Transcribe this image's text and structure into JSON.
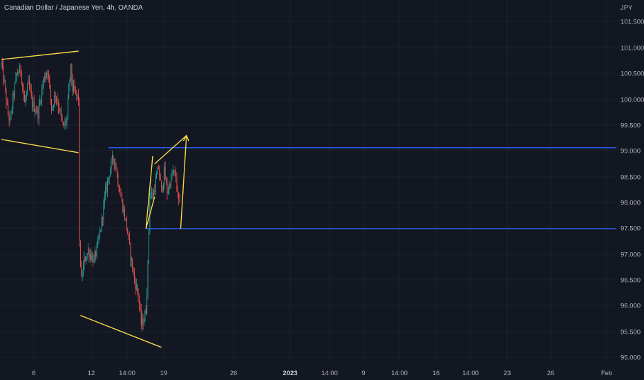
{
  "header": {
    "title": "Canadian Dollar / Japanese Yen, 4h, OANDA"
  },
  "price_axis": {
    "currency": "JPY"
  },
  "chart_data": {
    "type": "candlestick",
    "title": "Canadian Dollar / Japanese Yen, 4h, OANDA",
    "ylabel": "JPY",
    "ylim": [
      94.93,
      102.2
    ],
    "y_ticks": [
      "101.500",
      "101.000",
      "100.500",
      "100.000",
      "99.500",
      "99.000",
      "98.500",
      "98.000",
      "97.500",
      "97.000",
      "96.500",
      "96.000",
      "95.500",
      "95.000"
    ],
    "x_ticks": [
      "6",
      "12",
      "14:00",
      "19",
      "26",
      "2023",
      "14:00",
      "9",
      "14:00",
      "16",
      "14:00",
      "23",
      "26",
      "Feb"
    ],
    "x_bold_ticks": [
      "2023"
    ],
    "price_path": [
      [
        0,
        101.0
      ],
      [
        3,
        100.6
      ],
      [
        6,
        100.1
      ],
      [
        9,
        99.8
      ],
      [
        12,
        100.3
      ],
      [
        16,
        100.8
      ],
      [
        20,
        100.9
      ],
      [
        24,
        100.2
      ],
      [
        28,
        100.6
      ],
      [
        32,
        100.2
      ],
      [
        38,
        100.0
      ],
      [
        44,
        100.7
      ],
      [
        48,
        100.9
      ],
      [
        52,
        100.1
      ],
      [
        56,
        100.4
      ],
      [
        60,
        100.1
      ],
      [
        64,
        99.7
      ],
      [
        68,
        99.9
      ],
      [
        70,
        100.5
      ],
      [
        72,
        100.9
      ],
      [
        74,
        100.5
      ],
      [
        80,
        100.3
      ],
      [
        81,
        97.3
      ],
      [
        83,
        96.6
      ],
      [
        86,
        97.0
      ],
      [
        90,
        97.2
      ],
      [
        96,
        97.0
      ],
      [
        100,
        97.3
      ],
      [
        104,
        97.8
      ],
      [
        108,
        98.4
      ],
      [
        112,
        98.8
      ],
      [
        116,
        99.1
      ],
      [
        118,
        99.0
      ],
      [
        122,
        98.5
      ],
      [
        126,
        98.1
      ],
      [
        130,
        97.7
      ],
      [
        134,
        97.1
      ],
      [
        138,
        96.6
      ],
      [
        142,
        96.3
      ],
      [
        145,
        95.7
      ],
      [
        148,
        95.8
      ],
      [
        150,
        96.0
      ],
      [
        152,
        96.9
      ],
      [
        154,
        98.4
      ],
      [
        157,
        98.3
      ],
      [
        160,
        98.6
      ],
      [
        163,
        98.9
      ],
      [
        166,
        98.4
      ],
      [
        169,
        98.8
      ],
      [
        172,
        98.4
      ],
      [
        175,
        98.6
      ],
      [
        178,
        98.8
      ],
      [
        181,
        98.7
      ],
      [
        183,
        98.3
      ],
      [
        185,
        98.1
      ]
    ],
    "patterns": [
      {
        "name": "broadening-top-trendline",
        "color": "#f7d84a",
        "points": [
          [
            0,
            101.1
          ],
          [
            80,
            101.27
          ]
        ]
      },
      {
        "name": "broadening-bottom-trendline",
        "color": "#f7d84a",
        "points": [
          [
            0,
            99.47
          ],
          [
            80,
            99.2
          ]
        ]
      },
      {
        "name": "falling-wedge-lower-trendline",
        "color": "#f7d84a",
        "points": [
          [
            82,
            95.88
          ],
          [
            166,
            95.23
          ]
        ]
      },
      {
        "name": "flag-pole-left-edge",
        "color": "#f7d84a",
        "points": [
          [
            150,
            97.65
          ],
          [
            157,
            99.13
          ]
        ]
      },
      {
        "name": "flag-pole-right-edge",
        "color": "#f7d84a",
        "points": [
          [
            150,
            97.65
          ],
          [
            159,
            98.3
          ]
        ]
      },
      {
        "name": "flag-top-trendline",
        "color": "#f7d84a",
        "points": [
          [
            159,
            98.97
          ],
          [
            192,
            99.55
          ]
        ]
      },
      {
        "name": "projection-up-arrow",
        "color": "#f7d84a",
        "points": [
          [
            186,
            97.65
          ],
          [
            192,
            99.55
          ]
        ],
        "arrow": true
      }
    ],
    "levels": [
      {
        "name": "resistance-level",
        "color": "#2962ff",
        "price": 99.3,
        "from_bar": 111
      },
      {
        "name": "support-level",
        "color": "#2962ff",
        "price": 97.65,
        "from_bar": 150
      }
    ],
    "colors": {
      "up": "#26a69a",
      "down": "#ef5350",
      "grid": "#1e222d",
      "background": "#131722"
    }
  }
}
